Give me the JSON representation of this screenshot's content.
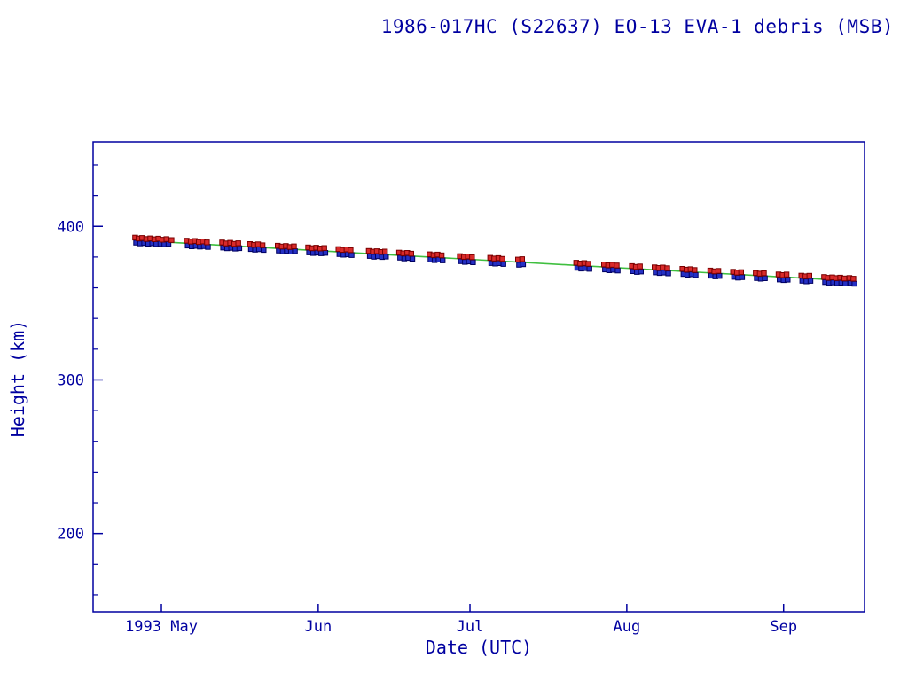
{
  "chart": {
    "title": "1986-017HC (S22637) EO-13 EVA-1 debris (MSB)",
    "xlabel": "Date (UTC)",
    "ylabel": "Height (km)"
  },
  "colors": {
    "background": "#ffffff",
    "axis": "#0000a0",
    "text": "#0000a0",
    "red_points": "#d92b2b",
    "red_points_edge": "#7a0000",
    "blue_points": "#2530c4",
    "blue_points_edge": "#000060",
    "fit_line": "#3fbf3f"
  },
  "chart_data": {
    "type": "scatter",
    "title": "1986-017HC (S22637) EO-13 EVA-1 debris (MSB)",
    "xlabel": "Date (UTC)",
    "ylabel": "Height (km)",
    "x_unit": "day_of_year_1993",
    "xlim": [
      107.5,
      260
    ],
    "ylim": [
      149,
      455
    ],
    "grid": false,
    "legend": false,
    "x_ticks": [
      {
        "value": 121,
        "label": "1993 May"
      },
      {
        "value": 152,
        "label": "Jun"
      },
      {
        "value": 182,
        "label": "Jul"
      },
      {
        "value": 213,
        "label": "Aug"
      },
      {
        "value": 244,
        "label": "Sep"
      }
    ],
    "y_ticks": [
      {
        "value": 200,
        "label": "200"
      },
      {
        "value": 300,
        "label": "300"
      },
      {
        "value": 400,
        "label": "400"
      }
    ],
    "y_minor_step": 20,
    "series": [
      {
        "name": "fit-line",
        "kind": "line",
        "color_key": "fit_line",
        "points": [
          [
            119,
            390.3
          ],
          [
            140,
            386.4
          ],
          [
            160,
            382.6
          ],
          [
            182,
            378.5
          ],
          [
            203,
            374.6
          ],
          [
            224,
            370.7
          ],
          [
            244,
            367.0
          ],
          [
            258,
            364.4
          ]
        ]
      },
      {
        "name": "blue-points",
        "kind": "square",
        "color_key": "blue_points",
        "edge_key": "blue_points_edge",
        "points": [
          [
            116.0,
            389.4
          ],
          [
            116.8,
            388.9
          ],
          [
            117.6,
            389.2
          ],
          [
            118.4,
            388.7
          ],
          [
            119.2,
            389.0
          ],
          [
            120.0,
            388.5
          ],
          [
            120.8,
            388.8
          ],
          [
            121.6,
            388.3
          ],
          [
            122.4,
            388.6
          ],
          [
            126.2,
            387.5
          ],
          [
            127.0,
            387.0
          ],
          [
            127.8,
            387.3
          ],
          [
            128.6,
            386.8
          ],
          [
            129.4,
            387.1
          ],
          [
            130.2,
            386.6
          ],
          [
            133.2,
            386.2
          ],
          [
            134.0,
            385.7
          ],
          [
            134.8,
            386.0
          ],
          [
            135.6,
            385.5
          ],
          [
            136.4,
            385.8
          ],
          [
            138.7,
            385.2
          ],
          [
            139.5,
            384.8
          ],
          [
            140.3,
            385.1
          ],
          [
            141.2,
            384.6
          ],
          [
            144.2,
            384.2
          ],
          [
            145.0,
            383.7
          ],
          [
            145.8,
            384.0
          ],
          [
            146.6,
            383.5
          ],
          [
            147.4,
            383.8
          ],
          [
            150.2,
            383.0
          ],
          [
            151.0,
            382.6
          ],
          [
            151.8,
            382.9
          ],
          [
            152.6,
            382.4
          ],
          [
            153.4,
            382.7
          ],
          [
            156.2,
            381.9
          ],
          [
            157.0,
            381.5
          ],
          [
            157.8,
            381.8
          ],
          [
            158.6,
            381.3
          ],
          [
            162.2,
            380.7
          ],
          [
            163.0,
            380.2
          ],
          [
            163.8,
            380.5
          ],
          [
            164.6,
            380.0
          ],
          [
            165.4,
            380.3
          ],
          [
            168.2,
            379.6
          ],
          [
            169.0,
            379.1
          ],
          [
            169.8,
            379.4
          ],
          [
            170.6,
            378.9
          ],
          [
            174.2,
            378.4
          ],
          [
            175.0,
            378.0
          ],
          [
            175.8,
            378.3
          ],
          [
            176.6,
            377.8
          ],
          [
            180.2,
            377.3
          ],
          [
            181.0,
            376.8
          ],
          [
            181.8,
            377.1
          ],
          [
            182.6,
            376.6
          ],
          [
            186.2,
            376.1
          ],
          [
            187.0,
            375.7
          ],
          [
            187.8,
            376.0
          ],
          [
            188.6,
            375.5
          ],
          [
            191.7,
            375.0
          ],
          [
            192.5,
            375.3
          ],
          [
            203.2,
            373.0
          ],
          [
            204.0,
            372.5
          ],
          [
            204.8,
            372.8
          ],
          [
            205.6,
            372.3
          ],
          [
            208.7,
            371.9
          ],
          [
            209.5,
            371.4
          ],
          [
            210.3,
            371.7
          ],
          [
            211.2,
            371.2
          ],
          [
            214.2,
            370.8
          ],
          [
            215.0,
            370.3
          ],
          [
            215.8,
            370.6
          ],
          [
            218.7,
            370.0
          ],
          [
            219.5,
            369.6
          ],
          [
            220.3,
            369.9
          ],
          [
            221.2,
            369.4
          ],
          [
            224.2,
            369.0
          ],
          [
            225.0,
            368.5
          ],
          [
            225.8,
            368.8
          ],
          [
            226.6,
            368.3
          ],
          [
            229.7,
            367.9
          ],
          [
            230.5,
            367.4
          ],
          [
            231.3,
            367.7
          ],
          [
            234.2,
            367.1
          ],
          [
            235.0,
            366.6
          ],
          [
            235.8,
            366.9
          ],
          [
            238.7,
            366.3
          ],
          [
            239.5,
            365.9
          ],
          [
            240.3,
            366.2
          ],
          [
            243.2,
            365.4
          ],
          [
            244.0,
            365.0
          ],
          [
            244.8,
            365.3
          ],
          [
            247.7,
            364.6
          ],
          [
            248.5,
            364.2
          ],
          [
            249.3,
            364.5
          ],
          [
            252.2,
            363.7
          ],
          [
            253.0,
            363.2
          ],
          [
            253.8,
            363.5
          ],
          [
            254.6,
            363.0
          ],
          [
            255.4,
            363.3
          ],
          [
            256.2,
            362.8
          ],
          [
            257.2,
            363.1
          ],
          [
            258.0,
            362.6
          ]
        ]
      },
      {
        "name": "red-points",
        "kind": "square",
        "color_key": "red_points",
        "edge_key": "red_points_edge",
        "points": [
          [
            115.8,
            392.7
          ],
          [
            116.5,
            392.1
          ],
          [
            117.2,
            392.5
          ],
          [
            118.0,
            391.8
          ],
          [
            118.8,
            392.2
          ],
          [
            119.6,
            391.6
          ],
          [
            120.4,
            392.0
          ],
          [
            121.2,
            391.3
          ],
          [
            122.0,
            391.7
          ],
          [
            123.0,
            391.1
          ],
          [
            126.0,
            390.7
          ],
          [
            126.8,
            390.1
          ],
          [
            127.6,
            390.5
          ],
          [
            128.4,
            389.8
          ],
          [
            129.2,
            390.2
          ],
          [
            130.0,
            389.6
          ],
          [
            133.0,
            389.5
          ],
          [
            133.8,
            388.9
          ],
          [
            134.6,
            389.3
          ],
          [
            135.4,
            388.6
          ],
          [
            136.2,
            389.0
          ],
          [
            138.5,
            388.5
          ],
          [
            139.3,
            387.9
          ],
          [
            140.1,
            388.3
          ],
          [
            141.0,
            387.7
          ],
          [
            144.0,
            387.4
          ],
          [
            144.8,
            386.9
          ],
          [
            145.6,
            387.2
          ],
          [
            146.4,
            386.6
          ],
          [
            147.2,
            387.0
          ],
          [
            150.0,
            386.3
          ],
          [
            150.8,
            385.8
          ],
          [
            151.6,
            386.1
          ],
          [
            152.4,
            385.6
          ],
          [
            153.2,
            385.9
          ],
          [
            156.0,
            385.2
          ],
          [
            156.8,
            384.7
          ],
          [
            157.6,
            385.0
          ],
          [
            158.4,
            384.5
          ],
          [
            162.0,
            384.0
          ],
          [
            162.8,
            383.5
          ],
          [
            163.6,
            383.8
          ],
          [
            164.4,
            383.3
          ],
          [
            165.2,
            383.6
          ],
          [
            168.0,
            382.9
          ],
          [
            168.8,
            382.4
          ],
          [
            169.6,
            382.7
          ],
          [
            170.4,
            382.2
          ],
          [
            174.0,
            381.8
          ],
          [
            174.8,
            381.3
          ],
          [
            175.6,
            381.6
          ],
          [
            176.4,
            381.1
          ],
          [
            180.0,
            380.6
          ],
          [
            180.8,
            380.1
          ],
          [
            181.6,
            380.4
          ],
          [
            182.4,
            379.9
          ],
          [
            186.0,
            379.5
          ],
          [
            186.8,
            379.0
          ],
          [
            187.6,
            379.3
          ],
          [
            188.4,
            378.8
          ],
          [
            191.5,
            378.3
          ],
          [
            192.3,
            378.6
          ],
          [
            203.0,
            376.3
          ],
          [
            203.8,
            375.8
          ],
          [
            204.6,
            376.1
          ],
          [
            205.4,
            375.6
          ],
          [
            208.5,
            375.2
          ],
          [
            209.3,
            374.7
          ],
          [
            210.1,
            375.0
          ],
          [
            211.0,
            374.5
          ],
          [
            214.0,
            374.1
          ],
          [
            214.8,
            373.6
          ],
          [
            215.6,
            373.9
          ],
          [
            218.5,
            373.3
          ],
          [
            219.3,
            372.9
          ],
          [
            220.1,
            373.2
          ],
          [
            221.0,
            372.7
          ],
          [
            224.0,
            372.3
          ],
          [
            224.8,
            371.8
          ],
          [
            225.6,
            372.1
          ],
          [
            226.4,
            371.6
          ],
          [
            229.5,
            371.2
          ],
          [
            230.3,
            370.7
          ],
          [
            231.1,
            371.0
          ],
          [
            234.0,
            370.4
          ],
          [
            234.8,
            369.9
          ],
          [
            235.6,
            370.2
          ],
          [
            238.5,
            369.6
          ],
          [
            239.3,
            369.2
          ],
          [
            240.1,
            369.5
          ],
          [
            243.0,
            368.7
          ],
          [
            243.8,
            368.3
          ],
          [
            244.6,
            368.6
          ],
          [
            247.5,
            367.9
          ],
          [
            248.3,
            367.5
          ],
          [
            249.1,
            367.8
          ],
          [
            252.0,
            367.0
          ],
          [
            252.8,
            366.5
          ],
          [
            253.6,
            366.8
          ],
          [
            254.4,
            366.3
          ],
          [
            255.2,
            366.6
          ],
          [
            256.0,
            366.1
          ],
          [
            257.0,
            366.4
          ],
          [
            257.8,
            365.9
          ]
        ]
      }
    ]
  }
}
